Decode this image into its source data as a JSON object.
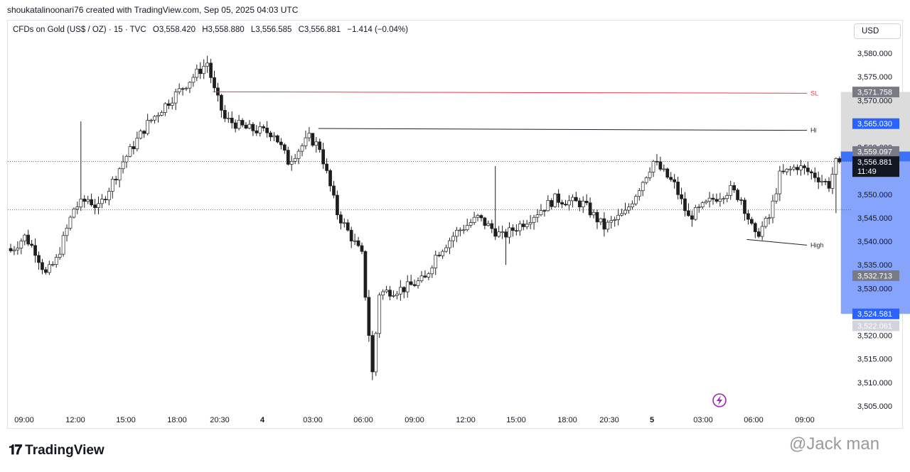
{
  "header": {
    "credit": "shoukatalinoonari76 created with TradingView.com, Sep 05, 2025 04:03 UTC"
  },
  "legend": {
    "symbol": "CFDs on Gold (US$ / OZ) · 15 · TVC",
    "open": "O3,558.420",
    "high": "H3,558.880",
    "low": "L3,556.585",
    "close": "C3,556.881",
    "change": "−1.414 (−0.04%)"
  },
  "currency_button": "USD",
  "footer": {
    "logo_text": "TradingView",
    "watermark": "@Jack man"
  },
  "colors": {
    "up_candle": "#ffffff",
    "down_candle": "#1e1e1e",
    "sl_line": "#f23645",
    "hi_line": "#1e222d",
    "stop_zone": "#dcdcdc",
    "target_zone": "#86a4fb",
    "entry_zone": "#3d72f7",
    "tag_blue": "#2962ff",
    "tag_gray": "#787b86",
    "tag_dark": "#131722",
    "replay_icon": "#9c27b0"
  },
  "chart_data": {
    "type": "candlestick",
    "instrument": "CFDs on Gold (US$ / OZ)",
    "interval": "15",
    "ylim": [
      3502,
      3585
    ],
    "y_ticks": [
      "3,580.000",
      "3,575.000",
      "3,570.000",
      "3,565.000",
      "3,560.000",
      "3,555.000",
      "3,550.000",
      "3,545.000",
      "3,540.000",
      "3,535.000",
      "3,530.000",
      "3,525.000",
      "3,520.000",
      "3,515.000",
      "3,510.000",
      "3,505.000"
    ],
    "x_ticks": [
      {
        "label": "09:00",
        "bold": false
      },
      {
        "label": "12:00",
        "bold": false
      },
      {
        "label": "15:00",
        "bold": false
      },
      {
        "label": "18:00",
        "bold": false
      },
      {
        "label": "20:30",
        "bold": false
      },
      {
        "label": "4",
        "bold": true
      },
      {
        "label": "03:00",
        "bold": false
      },
      {
        "label": "06:00",
        "bold": false
      },
      {
        "label": "09:00",
        "bold": false
      },
      {
        "label": "12:00",
        "bold": false
      },
      {
        "label": "15:00",
        "bold": false
      },
      {
        "label": "18:00",
        "bold": false
      },
      {
        "label": "20:30",
        "bold": false
      },
      {
        "label": "5",
        "bold": true
      },
      {
        "label": "03:00",
        "bold": false
      },
      {
        "label": "06:00",
        "bold": false
      },
      {
        "label": "09:00",
        "bold": false
      }
    ],
    "anchors": [
      [
        0,
        3538
      ],
      [
        4,
        3541
      ],
      [
        7,
        3538
      ],
      [
        10,
        3533
      ],
      [
        13,
        3536
      ],
      [
        18,
        3547
      ],
      [
        22,
        3549
      ],
      [
        25,
        3547
      ],
      [
        32,
        3557
      ],
      [
        39,
        3565
      ],
      [
        44,
        3569
      ],
      [
        52,
        3575
      ],
      [
        56,
        3578
      ],
      [
        58,
        3572
      ],
      [
        61,
        3566
      ],
      [
        67,
        3564
      ],
      [
        75,
        3563
      ],
      [
        79,
        3557
      ],
      [
        85,
        3562
      ],
      [
        88,
        3560
      ],
      [
        93,
        3546
      ],
      [
        100,
        3537
      ],
      [
        103,
        3512
      ],
      [
        105,
        3529
      ],
      [
        112,
        3530
      ],
      [
        118,
        3532
      ],
      [
        121,
        3537
      ],
      [
        127,
        3542
      ],
      [
        133,
        3545
      ],
      [
        140,
        3541
      ],
      [
        146,
        3544
      ],
      [
        155,
        3549
      ],
      [
        163,
        3548
      ],
      [
        169,
        3543
      ],
      [
        175,
        3546
      ],
      [
        183,
        3557
      ],
      [
        189,
        3552
      ],
      [
        193,
        3545
      ],
      [
        200,
        3549
      ],
      [
        205,
        3551
      ],
      [
        208,
        3549
      ],
      [
        212,
        3541
      ],
      [
        216,
        3545
      ],
      [
        219,
        3554
      ],
      [
        224,
        3556
      ],
      [
        229,
        3554
      ],
      [
        233,
        3552
      ],
      [
        236,
        3559
      ]
    ],
    "current_price": "3,556.881",
    "countdown": "11:49",
    "price_tags": [
      {
        "label": "3,571.758",
        "value": 3571.758,
        "style": "gray"
      },
      {
        "label": "3,565.030",
        "value": 3565.03,
        "style": "blue"
      },
      {
        "label": "3,559.097",
        "value": 3559.097,
        "style": "gray"
      },
      {
        "label": "3,532.713",
        "value": 3532.713,
        "style": "gray"
      },
      {
        "label": "3,524.581",
        "value": 3524.581,
        "style": "blue"
      },
      {
        "label": "3,522.061",
        "value": 3522.061,
        "style": "light"
      }
    ],
    "hlines": [
      {
        "label": "SL",
        "y_start": 3571.8,
        "y_end": 3571.5,
        "bar_start": 58,
        "color": "#f23645"
      },
      {
        "label": "Hi",
        "y_start": 3564.0,
        "y_end": 3563.6,
        "bar_start": 88,
        "color": "#1e222d"
      },
      {
        "label": "High",
        "y_start": 3540.4,
        "y_end": 3539.2,
        "bar_start": 210,
        "color": "#1e222d"
      }
    ],
    "dotted_lines": [
      3557.0,
      3546.7
    ],
    "position_box": {
      "stop": 3571.758,
      "entry": 3559.097,
      "target": 3524.581,
      "bar_start": 237,
      "bar_end": 263
    }
  }
}
